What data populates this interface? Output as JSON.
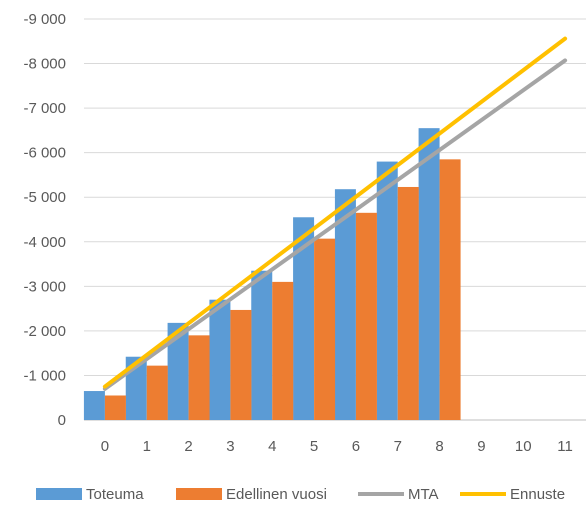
{
  "chart_data": {
    "type": "bar",
    "categories": [
      "0",
      "1",
      "2",
      "3",
      "4",
      "5",
      "6",
      "7",
      "8",
      "9",
      "10",
      "11"
    ],
    "ylim": [
      0,
      -9000
    ],
    "y_ticks": [
      0,
      -1000,
      -2000,
      -3000,
      -4000,
      -5000,
      -6000,
      -7000,
      -8000,
      -9000
    ],
    "y_tick_labels": [
      "0",
      "-1 000",
      "-2 000",
      "-3 000",
      "-4 000",
      "-5 000",
      "-6 000",
      "-7 000",
      "-8 000",
      "-9 000"
    ],
    "grid": true,
    "legend_position": "bottom",
    "series": [
      {
        "name": "Toteuma",
        "type": "bar",
        "color": "#5B9BD5",
        "values": [
          -650,
          -1420,
          -2180,
          -2700,
          -3350,
          -4550,
          -5180,
          -5800,
          -6550,
          null,
          null,
          null
        ]
      },
      {
        "name": "Edellinen vuosi",
        "type": "bar",
        "color": "#ED7D31",
        "values": [
          -550,
          -1220,
          -1900,
          -2470,
          -3100,
          -4070,
          -4650,
          -5230,
          -5850,
          null,
          null,
          null
        ]
      },
      {
        "name": "MTA",
        "type": "line",
        "color": "#A5A5A5",
        "values": [
          -700,
          -1370,
          -2040,
          -2710,
          -3380,
          -4050,
          -4720,
          -5390,
          -6060,
          -6730,
          -7400,
          -8070
        ]
      },
      {
        "name": "Ennuste",
        "type": "line",
        "color": "#FFC000",
        "values": [
          -750,
          -1460,
          -2170,
          -2880,
          -3590,
          -4300,
          -5010,
          -5720,
          -6430,
          -7140,
          -7850,
          -8560
        ]
      }
    ]
  }
}
